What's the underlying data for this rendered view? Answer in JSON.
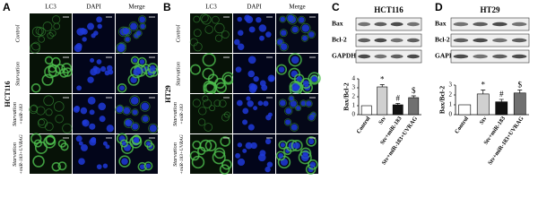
{
  "figure": {
    "panels": [
      {
        "letter": "A",
        "cell_line": "HCT116",
        "columns": [
          "LC3",
          "DAPI",
          "Merge"
        ],
        "rows": [
          [
            "Control"
          ],
          [
            "Starvation"
          ],
          [
            "Starvation",
            "+miR-183"
          ],
          [
            "Starvation",
            "+miR-183+UVRAG"
          ]
        ]
      },
      {
        "letter": "B",
        "cell_line": "HT29",
        "columns": [
          "LC3",
          "DAPI",
          "Merge"
        ],
        "rows": [
          [
            "Control"
          ],
          [
            "Starvation"
          ],
          [
            "Starvation",
            "+miR-183"
          ],
          [
            "Starvation",
            "+miR-183+UVRAG"
          ]
        ]
      }
    ],
    "blots": [
      {
        "letter": "C",
        "title": "HCT116",
        "rows": [
          "Bax",
          "Bcl-2",
          "GAPDH"
        ]
      },
      {
        "letter": "D",
        "title": "HT29",
        "rows": [
          "Bax",
          "Bcl-2",
          "GAPDH"
        ]
      }
    ]
  },
  "chart_data": [
    {
      "type": "bar",
      "ylabel": "Bax/Bcl-2",
      "categories": [
        "Control",
        "Stv",
        "Stv+miR-183",
        "Stv+miR-183+UVRAG"
      ],
      "values": [
        1,
        3.1,
        1.1,
        1.9
      ],
      "errors": [
        0,
        0.25,
        0.15,
        0.2
      ],
      "markers": [
        null,
        "*",
        "#",
        "$"
      ],
      "colors": [
        "#ffffff",
        "#d0d0d0",
        "#111111",
        "#707070"
      ],
      "ylim": [
        0,
        4
      ],
      "yticks": [
        0,
        1,
        2,
        3,
        4
      ]
    },
    {
      "type": "bar",
      "ylabel": "Bax/Bcl-2",
      "categories": [
        "Control",
        "Stv",
        "Stv+miR-183",
        "Stv+miR-183+UVRAG"
      ],
      "values": [
        1,
        2.1,
        1.3,
        2.2
      ],
      "errors": [
        0,
        0.4,
        0.25,
        0.3
      ],
      "markers": [
        null,
        "*",
        "#",
        "$"
      ],
      "colors": [
        "#ffffff",
        "#d0d0d0",
        "#111111",
        "#707070"
      ],
      "ylim": [
        0,
        3
      ],
      "yticks": [
        0,
        1,
        2,
        3
      ]
    }
  ]
}
